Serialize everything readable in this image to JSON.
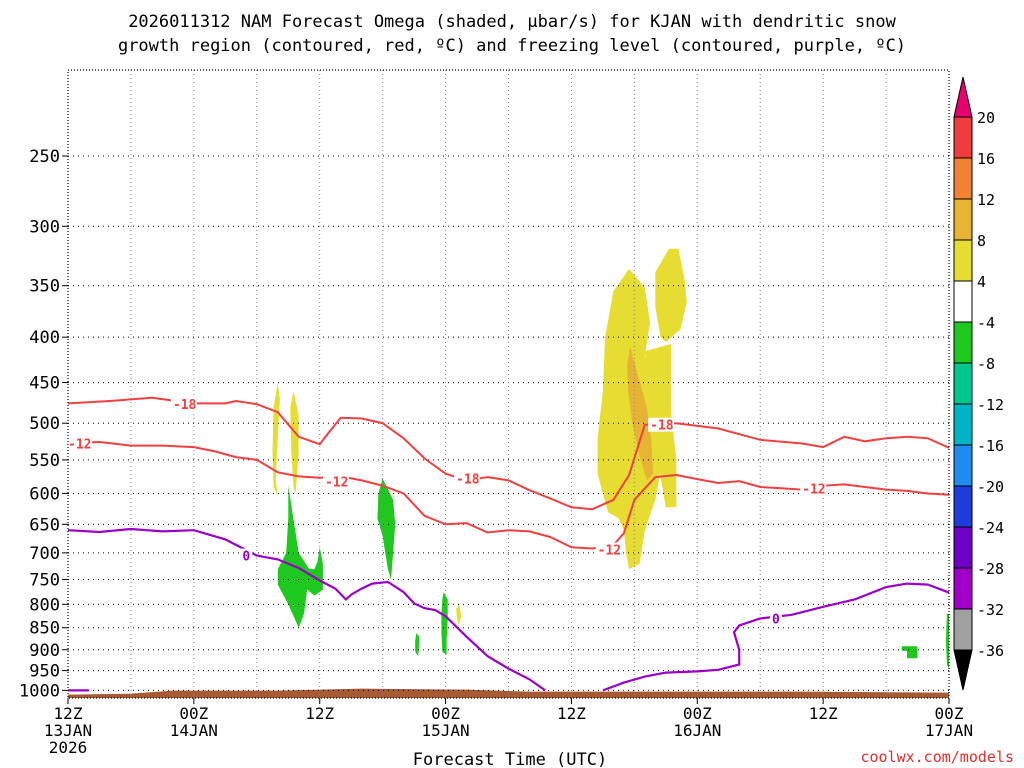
{
  "chart_data": {
    "type": "time-height cross section (contour/shaded)",
    "title_line1": "2026011312 NAM Forecast Omega (shaded, μbar/s) for KJAN with dendritic snow",
    "title_line2": "growth region (contoured, red, ºC) and freezing level (contoured, purple, ºC)",
    "xlabel": "Forecast Time (UTC)",
    "watermark": "coolwx.com/models",
    "grid": true,
    "y_axis": {
      "scale": "pressure",
      "units": "hPa",
      "ylim": [
        1020,
        200
      ],
      "ticks": [
        250,
        300,
        350,
        400,
        450,
        500,
        550,
        600,
        650,
        700,
        750,
        800,
        850,
        900,
        950,
        1000
      ],
      "tick_labels": [
        "250",
        "300",
        "350",
        "400",
        "450",
        "500",
        "550",
        "600",
        "650",
        "700",
        "750",
        "800",
        "850",
        "900",
        "950",
        "1000"
      ]
    },
    "x_axis": {
      "units": "forecast hour",
      "xlim": [
        0,
        84
      ],
      "vertical_grid_hours": [
        0,
        6,
        12,
        18,
        24,
        30,
        36,
        42,
        48,
        54,
        60,
        66,
        72,
        78,
        84
      ],
      "ticks": [
        {
          "hour": 0,
          "lines": [
            "12Z",
            "13JAN",
            "2026"
          ]
        },
        {
          "hour": 12,
          "lines": [
            "00Z",
            "14JAN"
          ]
        },
        {
          "hour": 24,
          "lines": [
            "12Z"
          ]
        },
        {
          "hour": 36,
          "lines": [
            "00Z",
            "15JAN"
          ]
        },
        {
          "hour": 48,
          "lines": [
            "12Z"
          ]
        },
        {
          "hour": 60,
          "lines": [
            "00Z",
            "16JAN"
          ]
        },
        {
          "hour": 72,
          "lines": [
            "12Z"
          ]
        },
        {
          "hour": 84,
          "lines": [
            "00Z",
            "17JAN"
          ]
        }
      ]
    },
    "colorbar": {
      "labels": [
        "20",
        "16",
        "12",
        "8",
        "4",
        "-4",
        "-8",
        "-12",
        "-16",
        "-20",
        "-24",
        "-28",
        "-32",
        "-36"
      ],
      "colors": [
        "#e8006e",
        "#f03c3c",
        "#f08232",
        "#e6b432",
        "#e6dc32",
        "#ffffff",
        "#1ec81e",
        "#00c88c",
        "#00b4c8",
        "#1e8cf0",
        "#1e3cdc",
        "#6e00c8",
        "#a000c8",
        "#a0a0a0",
        "#000000"
      ]
    },
    "freezing_level": {
      "color": "#9a00c8",
      "label": "0",
      "label_points": [
        [
          17,
          705
        ],
        [
          67.5,
          830
        ]
      ],
      "series": [
        {
          "name": "segment_1",
          "points": [
            [
              0,
              1000
            ],
            [
              2,
              1000
            ]
          ]
        },
        {
          "name": "segment_2",
          "points": [
            [
              0,
              660
            ],
            [
              3,
              663
            ],
            [
              6,
              658
            ],
            [
              9,
              662
            ],
            [
              12,
              660
            ],
            [
              15,
              676
            ],
            [
              18,
              705
            ],
            [
              20,
              712
            ],
            [
              22,
              728
            ],
            [
              24,
              752
            ],
            [
              25.5,
              768
            ],
            [
              26.5,
              790
            ],
            [
              27,
              780
            ],
            [
              28,
              768
            ],
            [
              29,
              758
            ],
            [
              30.5,
              755
            ],
            [
              32,
              775
            ],
            [
              33,
              798
            ],
            [
              34,
              808
            ],
            [
              35,
              812
            ],
            [
              36,
              825
            ],
            [
              38,
              870
            ],
            [
              40,
              915
            ],
            [
              42,
              945
            ],
            [
              44,
              972
            ],
            [
              45.5,
              1000
            ]
          ]
        },
        {
          "name": "segment_3",
          "points": [
            [
              51,
              1000
            ],
            [
              53,
              980
            ],
            [
              55,
              965
            ],
            [
              57,
              955
            ],
            [
              60,
              952
            ],
            [
              62,
              948
            ],
            [
              64,
              935
            ],
            [
              64,
              900
            ],
            [
              63.5,
              860
            ],
            [
              64,
              845
            ],
            [
              66,
              830
            ],
            [
              69,
              822
            ],
            [
              72,
              805
            ],
            [
              75,
              790
            ],
            [
              78,
              765
            ],
            [
              80,
              758
            ],
            [
              82,
              760
            ],
            [
              84,
              776
            ]
          ]
        }
      ]
    },
    "dgz_isotherms": {
      "color": "#f04040",
      "labels": [
        {
          "text": "-18",
          "at": [
            10,
            476
          ]
        },
        {
          "text": "-12",
          "at": [
            0,
            527
          ]
        },
        {
          "text": "-12",
          "at": [
            24.5,
            582
          ]
        },
        {
          "text": "-18",
          "at": [
            37,
            577
          ]
        },
        {
          "text": "-12",
          "at": [
            50.5,
            694
          ]
        },
        {
          "text": "-18",
          "at": [
            55.5,
            502
          ]
        },
        {
          "text": "-12",
          "at": [
            70,
            592
          ]
        }
      ],
      "minus18": [
        [
          0,
          475
        ],
        [
          4,
          472
        ],
        [
          8,
          468
        ],
        [
          12,
          475
        ],
        [
          15,
          475
        ],
        [
          16,
          472
        ],
        [
          18,
          476
        ],
        [
          20,
          486
        ],
        [
          22,
          518
        ],
        [
          24,
          528
        ],
        [
          25,
          510
        ],
        [
          26,
          493
        ],
        [
          28,
          494
        ],
        [
          30,
          500
        ],
        [
          32,
          520
        ],
        [
          34,
          548
        ],
        [
          36,
          570
        ],
        [
          38,
          580
        ],
        [
          40,
          575
        ],
        [
          42,
          580
        ],
        [
          44,
          595
        ],
        [
          46,
          608
        ],
        [
          48,
          622
        ],
        [
          50,
          625
        ],
        [
          52,
          610
        ],
        [
          53.5,
          572
        ],
        [
          55,
          502
        ],
        [
          58,
          500
        ],
        [
          62,
          507
        ],
        [
          66,
          522
        ],
        [
          70,
          527
        ],
        [
          72,
          532
        ],
        [
          74,
          518
        ],
        [
          76,
          524
        ],
        [
          78,
          520
        ],
        [
          80,
          518
        ],
        [
          82,
          520
        ],
        [
          84,
          533
        ]
      ],
      "minus12": [
        [
          0,
          527
        ],
        [
          3,
          525
        ],
        [
          6,
          530
        ],
        [
          9,
          530
        ],
        [
          12,
          532
        ],
        [
          14,
          538
        ],
        [
          16,
          546
        ],
        [
          18,
          550
        ],
        [
          20,
          568
        ],
        [
          22,
          574
        ],
        [
          24,
          576
        ],
        [
          26,
          574
        ],
        [
          28,
          580
        ],
        [
          30,
          588
        ],
        [
          32,
          600
        ],
        [
          34,
          636
        ],
        [
          36,
          650
        ],
        [
          38,
          648
        ],
        [
          40,
          664
        ],
        [
          42,
          660
        ],
        [
          44,
          662
        ],
        [
          46,
          672
        ],
        [
          48,
          690
        ],
        [
          50,
          692
        ],
        [
          52,
          686
        ],
        [
          53,
          665
        ],
        [
          54,
          610
        ],
        [
          56,
          575
        ],
        [
          58,
          572
        ],
        [
          60,
          578
        ],
        [
          62,
          584
        ],
        [
          64,
          581
        ],
        [
          66,
          590
        ],
        [
          68,
          592
        ],
        [
          70,
          594
        ],
        [
          72,
          588
        ],
        [
          74,
          586
        ],
        [
          76,
          590
        ],
        [
          78,
          594
        ],
        [
          80,
          596
        ],
        [
          82,
          600
        ],
        [
          84,
          602
        ]
      ]
    },
    "omega_shaded_regions": [
      {
        "value_range": "4 to 8",
        "color": "#e6dc32",
        "points": [
          [
            53.5,
            335
          ],
          [
            55,
            352
          ],
          [
            55.5,
            385
          ],
          [
            55,
            420
          ],
          [
            56,
            455
          ],
          [
            56.5,
            490
          ],
          [
            57,
            528
          ],
          [
            56.5,
            565
          ],
          [
            56,
            610
          ],
          [
            55,
            660
          ],
          [
            54.5,
            720
          ],
          [
            53.5,
            730
          ],
          [
            53.2,
            700
          ],
          [
            53,
            660
          ],
          [
            52.5,
            640
          ],
          [
            51.5,
            630
          ],
          [
            51,
            600
          ],
          [
            50.5,
            570
          ],
          [
            50.5,
            520
          ],
          [
            51,
            460
          ],
          [
            51.2,
            400
          ],
          [
            52,
            355
          ]
        ]
      },
      {
        "value_range": "4 to 8",
        "color": "#e6dc32",
        "points": [
          [
            56,
            338
          ],
          [
            57.3,
            318
          ],
          [
            58.2,
            318
          ],
          [
            58.8,
            345
          ],
          [
            59,
            365
          ],
          [
            58.4,
            392
          ],
          [
            57,
            405
          ],
          [
            56.5,
            400
          ],
          [
            56,
            370
          ]
        ]
      },
      {
        "value_range": "4 to 8",
        "color": "#e6dc32",
        "points": [
          [
            55,
            415
          ],
          [
            57.5,
            407
          ],
          [
            57.5,
            488
          ],
          [
            58,
            548
          ],
          [
            58,
            622
          ],
          [
            57,
            622
          ],
          [
            56.5,
            575
          ],
          [
            56,
            520
          ],
          [
            55.5,
            470
          ]
        ]
      },
      {
        "value_range": "4 to 8",
        "color": "#e6dc32",
        "points": [
          [
            20,
            450
          ],
          [
            20.2,
            470
          ],
          [
            20,
            520
          ],
          [
            19.8,
            580
          ],
          [
            20,
            605
          ],
          [
            19.6,
            590
          ],
          [
            19.5,
            540
          ],
          [
            19.6,
            480
          ]
        ]
      },
      {
        "value_range": "4 to 8",
        "color": "#e6dc32",
        "points": [
          [
            21.5,
            460
          ],
          [
            22,
            490
          ],
          [
            22,
            540
          ],
          [
            21.7,
            600
          ],
          [
            21.5,
            590
          ],
          [
            21.3,
            540
          ],
          [
            21.2,
            480
          ]
        ]
      },
      {
        "value_range": "4 to 8",
        "color": "#e6dc32",
        "points": [
          [
            37,
            810
          ],
          [
            37.3,
            800
          ],
          [
            37.5,
            825
          ],
          [
            37.2,
            845
          ],
          [
            37.1,
            830
          ]
        ]
      },
      {
        "value_range": "8 to 12",
        "color": "#e6b432",
        "points": [
          [
            53.6,
            410
          ],
          [
            54.3,
            440
          ],
          [
            55.2,
            480
          ],
          [
            55.6,
            520
          ],
          [
            55.8,
            570
          ],
          [
            55.2,
            580
          ],
          [
            54.5,
            545
          ],
          [
            53.8,
            500
          ],
          [
            53.4,
            460
          ],
          [
            53.3,
            430
          ]
        ]
      },
      {
        "value_range": "-4 to -8",
        "color": "#1ec81e",
        "points": [
          [
            21,
            588
          ],
          [
            22,
            700
          ],
          [
            23,
            730
          ],
          [
            23.5,
            730
          ],
          [
            23.8,
            715
          ],
          [
            24,
            690
          ],
          [
            24.3,
            720
          ],
          [
            24.3,
            770
          ],
          [
            23.5,
            782
          ],
          [
            22.8,
            770
          ],
          [
            22.5,
            820
          ],
          [
            22,
            850
          ],
          [
            21,
            800
          ],
          [
            20,
            760
          ],
          [
            20,
            730
          ],
          [
            20.8,
            700
          ],
          [
            21,
            640
          ]
        ]
      },
      {
        "value_range": "-4 to -8",
        "color": "#1ec81e",
        "points": [
          [
            30,
            577
          ],
          [
            31,
            610
          ],
          [
            31.2,
            650
          ],
          [
            31,
            700
          ],
          [
            30.8,
            750
          ],
          [
            30.5,
            730
          ],
          [
            30,
            670
          ],
          [
            29.5,
            640
          ],
          [
            29.6,
            600
          ]
        ]
      },
      {
        "value_range": "-4 to -8",
        "color": "#1ec81e",
        "points": [
          [
            35.8,
            775
          ],
          [
            36.2,
            790
          ],
          [
            36.2,
            830
          ],
          [
            36.1,
            880
          ],
          [
            36.1,
            912
          ],
          [
            35.7,
            905
          ],
          [
            35.6,
            860
          ],
          [
            35.6,
            820
          ],
          [
            35.7,
            790
          ]
        ]
      },
      {
        "value_range": "-4 to -8",
        "color": "#1ec81e",
        "points": [
          [
            33.2,
            862
          ],
          [
            33.5,
            870
          ],
          [
            33.4,
            915
          ],
          [
            33.1,
            905
          ],
          [
            33.1,
            880
          ]
        ]
      },
      {
        "value_range": "-4 to -8",
        "color": "#1ec81e",
        "points": [
          [
            79.5,
            892
          ],
          [
            81,
            892
          ],
          [
            81,
            920
          ],
          [
            80,
            920
          ],
          [
            80,
            903
          ],
          [
            79.5,
            902
          ]
        ]
      },
      {
        "value_range": "-4 to -8",
        "color": "#1ec81e",
        "points": [
          [
            83.8,
            820
          ],
          [
            84,
            820
          ],
          [
            84,
            945
          ],
          [
            83.8,
            935
          ],
          [
            83.7,
            880
          ]
        ]
      }
    ],
    "terrain": {
      "color": "#a85a32",
      "top_hpa": 1006,
      "label": "below-ground (brown)"
    }
  }
}
